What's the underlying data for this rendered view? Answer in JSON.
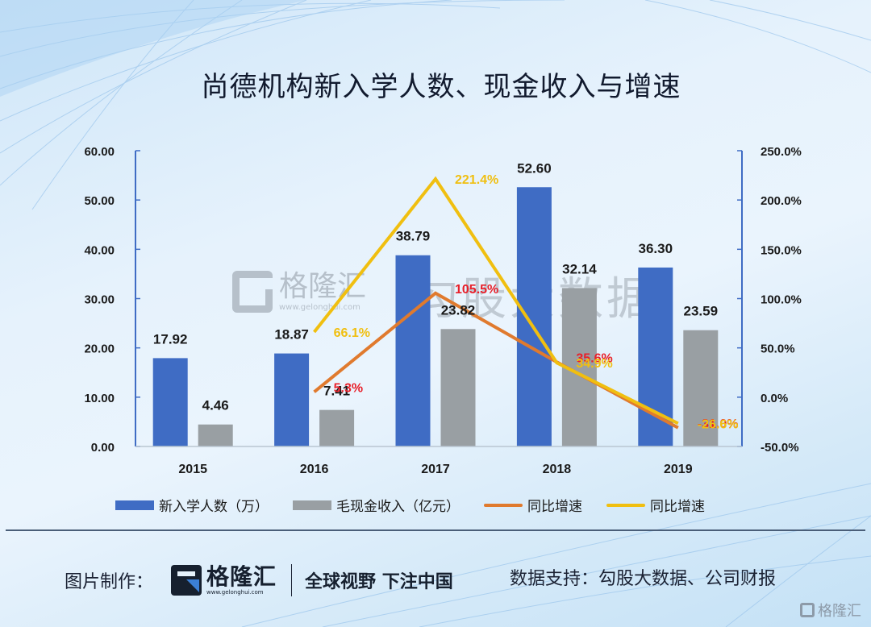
{
  "title": "尚德机构新入学人数、现金收入与增速",
  "watermarks": {
    "brand_name": "格隆汇",
    "brand_url": "www.gelonghui.com",
    "data_source_mark": "勾股大数据"
  },
  "legend": {
    "items": [
      {
        "label": "新入学人数（万）",
        "type": "box",
        "color": "#3f6cc4"
      },
      {
        "label": "毛现金收入（亿元）",
        "type": "box",
        "color": "#999fa3"
      },
      {
        "label": "同比增速",
        "type": "line",
        "color": "#e07a2e"
      },
      {
        "label": "同比增速",
        "type": "line",
        "color": "#f0bf10"
      }
    ]
  },
  "footer": {
    "credit_label": "图片制作：",
    "brand_name": "格隆汇",
    "brand_url": "www.gelonghui.com",
    "slogan": "全球视野 下注中国",
    "source_label": "数据支持：勾股大数据、公司财报",
    "corner_brand": "格隆汇"
  },
  "chart_data": {
    "type": "bar",
    "title": "尚德机构新入学人数、现金收入与增速",
    "categories": [
      "2015",
      "2016",
      "2017",
      "2018",
      "2019"
    ],
    "xlabel": "",
    "ylabel": "",
    "ylim": [
      0,
      60
    ],
    "y_ticks": [
      "0.00",
      "10.00",
      "20.00",
      "30.00",
      "40.00",
      "50.00",
      "60.00"
    ],
    "y2lim": [
      -50,
      250
    ],
    "y2_ticks": [
      "-50.0%",
      "0.0%",
      "50.0%",
      "100.0%",
      "150.0%",
      "200.0%",
      "250.0%"
    ],
    "grid": false,
    "legend_position": "bottom",
    "series": [
      {
        "name": "新入学人数（万）",
        "type": "bar",
        "axis": "left",
        "color": "#3f6cc4",
        "values": [
          17.92,
          18.87,
          38.79,
          52.6,
          36.3
        ],
        "labels": [
          "17.92",
          "18.87",
          "38.79",
          "52.60",
          "36.30"
        ]
      },
      {
        "name": "毛现金收入（亿元）",
        "type": "bar",
        "axis": "left",
        "color": "#999fa3",
        "values": [
          4.46,
          7.41,
          23.82,
          32.14,
          23.59
        ],
        "labels": [
          "4.46",
          "7.41",
          "23.82",
          "32.14",
          "23.59"
        ]
      },
      {
        "name": "同比增速",
        "type": "line",
        "axis": "right",
        "color": "#e07a2e",
        "label_color": "#e8202a",
        "values": [
          null,
          5.3,
          105.5,
          35.6,
          -31.0
        ],
        "labels": [
          "",
          "5.3%",
          "105.5%",
          "35.6%",
          "-31.0%"
        ]
      },
      {
        "name": "同比增速",
        "type": "line",
        "axis": "right",
        "color": "#f0bf10",
        "label_color": "#f0bf10",
        "values": [
          null,
          66.1,
          221.4,
          34.9,
          -26.6
        ],
        "labels": [
          "",
          "66.1%",
          "221.4%",
          "34.9%",
          "-26.6%"
        ]
      }
    ]
  }
}
